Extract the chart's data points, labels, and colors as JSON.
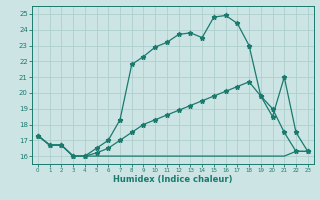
{
  "xlabel": "Humidex (Indice chaleur)",
  "bg_color": "#cde4e5",
  "grid_color": "#a8cccc",
  "line_color": "#1a7a6e",
  "xlim": [
    -0.5,
    23.5
  ],
  "ylim": [
    15.5,
    25.5
  ],
  "yticks": [
    16,
    17,
    18,
    19,
    20,
    21,
    22,
    23,
    24,
    25
  ],
  "xticks": [
    0,
    1,
    2,
    3,
    4,
    5,
    6,
    7,
    8,
    9,
    10,
    11,
    12,
    13,
    14,
    15,
    16,
    17,
    18,
    19,
    20,
    21,
    22,
    23
  ],
  "line1_x": [
    0,
    1,
    2,
    3,
    4,
    5,
    6,
    7,
    8,
    9,
    10,
    11,
    12,
    13,
    14,
    15,
    16,
    17,
    18,
    19,
    20,
    21,
    22,
    23
  ],
  "line1_y": [
    17.3,
    16.7,
    16.7,
    16.0,
    16.0,
    16.5,
    17.0,
    18.3,
    21.8,
    22.3,
    22.9,
    23.2,
    23.7,
    23.8,
    23.5,
    24.8,
    24.9,
    24.4,
    23.0,
    19.8,
    18.5,
    21.0,
    17.5,
    16.3
  ],
  "line2_x": [
    0,
    1,
    2,
    3,
    4,
    5,
    6,
    7,
    8,
    9,
    10,
    11,
    12,
    13,
    14,
    15,
    16,
    17,
    18,
    19,
    20,
    21,
    22,
    23
  ],
  "line2_y": [
    17.3,
    16.7,
    16.7,
    16.0,
    16.0,
    16.2,
    16.5,
    17.0,
    17.5,
    18.0,
    18.3,
    18.6,
    18.9,
    19.2,
    19.5,
    19.8,
    20.1,
    20.4,
    20.7,
    19.8,
    19.0,
    17.5,
    16.3,
    16.3
  ],
  "line3_x": [
    0,
    1,
    2,
    3,
    4,
    5,
    6,
    7,
    8,
    9,
    10,
    11,
    12,
    13,
    14,
    15,
    16,
    17,
    18,
    19,
    20,
    21,
    22,
    23
  ],
  "line3_y": [
    17.3,
    16.7,
    16.7,
    16.0,
    16.0,
    16.0,
    16.0,
    16.0,
    16.0,
    16.0,
    16.0,
    16.0,
    16.0,
    16.0,
    16.0,
    16.0,
    16.0,
    16.0,
    16.0,
    16.0,
    16.0,
    16.0,
    16.3,
    16.3
  ]
}
